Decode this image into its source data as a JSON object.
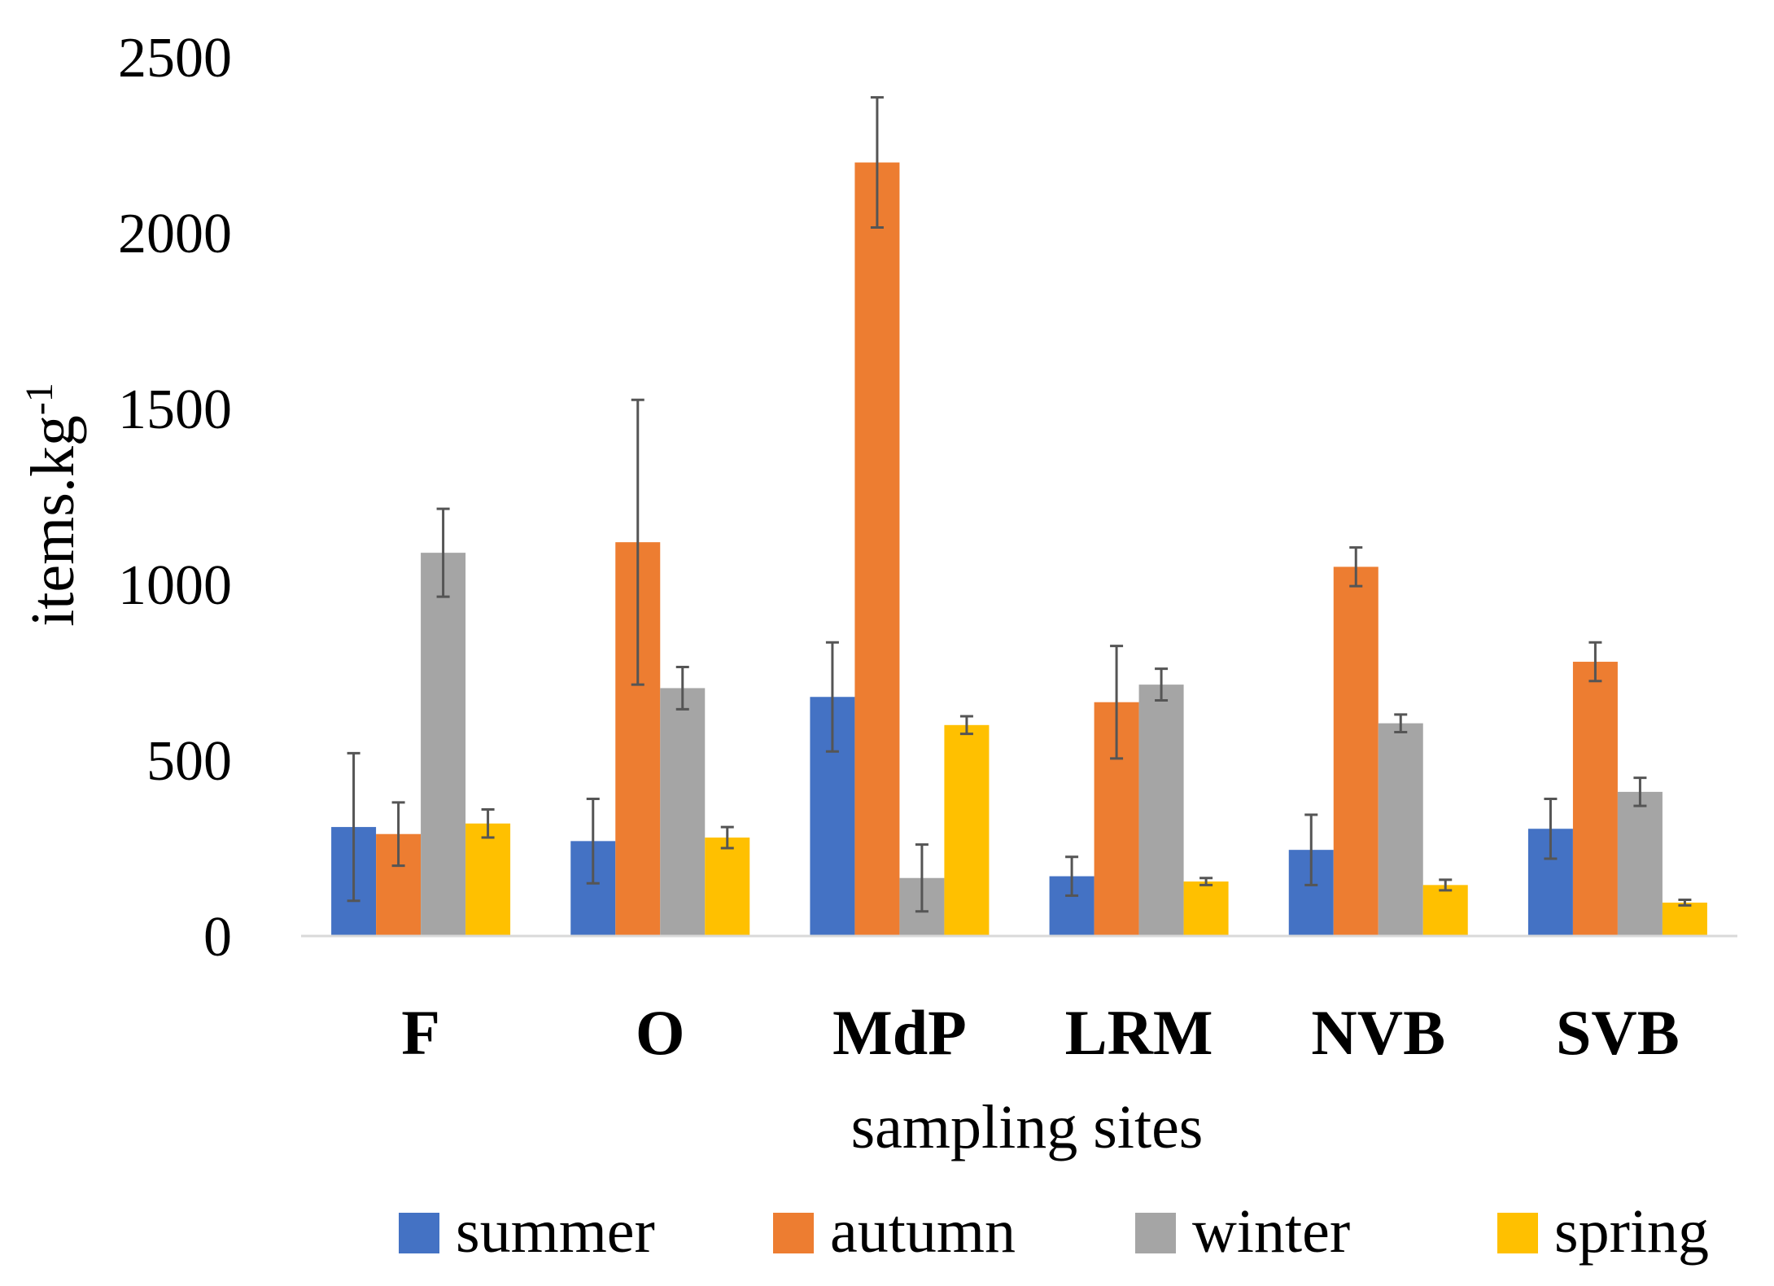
{
  "chart_data": {
    "type": "bar",
    "title": "",
    "xlabel": "sampling sites",
    "ylabel": "items.kg",
    "ylabel_superscript": "-1",
    "ylim": [
      0,
      2500
    ],
    "yticks": [
      0,
      500,
      1000,
      1500,
      2000,
      2500
    ],
    "grid": false,
    "legend_position": "bottom",
    "categories": [
      "F",
      "O",
      "MdP",
      "LRM",
      "NVB",
      "SVB"
    ],
    "series": [
      {
        "name": "summer",
        "color": "#4472C4",
        "values": [
          310,
          270,
          680,
          170,
          245,
          305
        ],
        "errors": [
          210,
          120,
          155,
          55,
          100,
          85
        ]
      },
      {
        "name": "autumn",
        "color": "#ED7D31",
        "values": [
          290,
          1120,
          2200,
          665,
          1050,
          780
        ],
        "errors": [
          90,
          405,
          185,
          160,
          55,
          55
        ]
      },
      {
        "name": "winter",
        "color": "#A5A5A5",
        "values": [
          1090,
          705,
          165,
          715,
          605,
          410
        ],
        "errors": [
          125,
          60,
          95,
          45,
          25,
          40
        ]
      },
      {
        "name": "spring",
        "color": "#FFC000",
        "values": [
          320,
          280,
          600,
          155,
          145,
          95
        ],
        "errors": [
          40,
          30,
          25,
          10,
          15,
          8
        ]
      }
    ]
  }
}
